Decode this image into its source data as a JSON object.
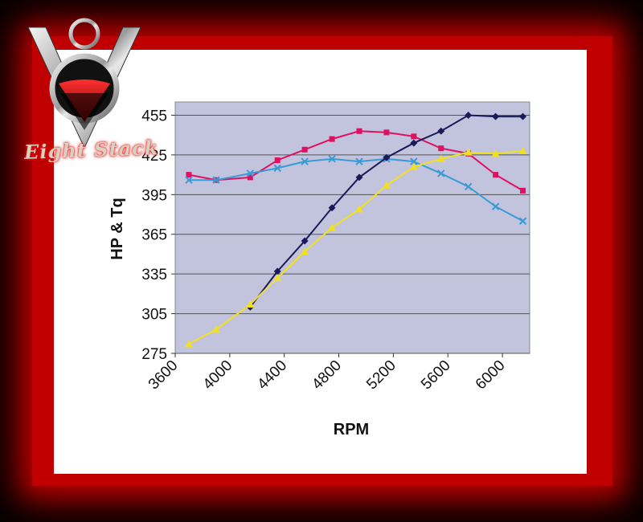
{
  "logo": {
    "text": "Eight Stack",
    "icon": "v8-emblem"
  },
  "chart_data": {
    "type": "line",
    "xlabel": "RPM",
    "ylabel": "HP & Tq",
    "x": [
      3700,
      3900,
      4150,
      4350,
      4550,
      4750,
      4950,
      5150,
      5350,
      5550,
      5750,
      5950,
      6150
    ],
    "xticks": [
      3600,
      4000,
      4400,
      4800,
      5200,
      5600,
      6000
    ],
    "yticks": [
      275,
      305,
      335,
      365,
      395,
      425,
      455
    ],
    "xlim": [
      3600,
      6200
    ],
    "ylim": [
      275,
      465
    ],
    "grid": "horizontal",
    "plot_background": "#c2c4de",
    "series": [
      {
        "color": "#e01060",
        "marker": "square",
        "values": [
          410,
          406,
          408,
          421,
          429,
          437,
          443,
          442,
          439,
          430,
          426,
          410,
          398
        ]
      },
      {
        "color": "#3a9ad6",
        "marker": "x",
        "values": [
          406,
          406,
          411,
          415,
          420,
          422,
          420,
          422,
          420,
          411,
          401,
          386,
          375
        ]
      },
      {
        "color": "#1a1a5a",
        "marker": "diamond",
        "values": null,
        "values_from": 4150,
        "points": [
          [
            4150,
            310
          ],
          [
            4350,
            337
          ],
          [
            4550,
            360
          ],
          [
            4750,
            385
          ],
          [
            4950,
            408
          ],
          [
            5150,
            423
          ],
          [
            5350,
            434
          ],
          [
            5550,
            443
          ],
          [
            5750,
            455
          ],
          [
            5950,
            454
          ],
          [
            6150,
            454
          ]
        ]
      },
      {
        "color": "#f0e020",
        "marker": "triangle",
        "values": [
          282,
          293,
          312,
          332,
          352,
          370,
          384,
          402,
          416,
          422,
          427,
          426,
          428
        ]
      }
    ]
  }
}
